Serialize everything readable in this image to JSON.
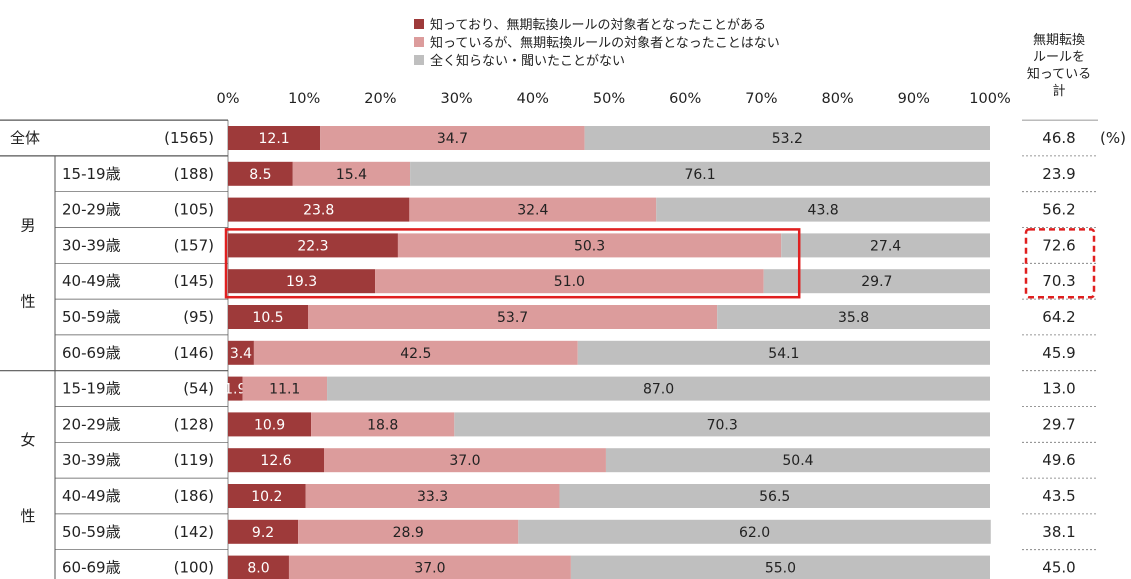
{
  "chart_data": {
    "type": "bar",
    "orientation": "horizontal",
    "stacked": true,
    "xlim": [
      0,
      100
    ],
    "xticks": [
      "0%",
      "10%",
      "20%",
      "30%",
      "40%",
      "50%",
      "60%",
      "70%",
      "80%",
      "90%",
      "100%"
    ],
    "legend": [
      {
        "name": "知っており、無期転換ルールの対象者となったことがある",
        "color": "#9e3a3a"
      },
      {
        "name": "知っているが、無期転換ルールの対象者となったことはない",
        "color": "#dc9c9c"
      },
      {
        "name": "全く知らない・聞いたことがない",
        "color": "#bfbfbf"
      }
    ],
    "right_header": [
      "無期転換",
      "ルールを",
      "知っている",
      "計"
    ],
    "unit": "(%)",
    "groups": [
      {
        "label": "全体",
        "chars": []
      },
      {
        "label": "男性",
        "chars": [
          "男",
          "性"
        ]
      },
      {
        "label": "女性",
        "chars": [
          "女",
          "性"
        ]
      }
    ],
    "rows": [
      {
        "group": 0,
        "label": "全体",
        "n": "(1565)",
        "values": [
          12.1,
          34.7,
          53.2
        ],
        "labels": [
          "12.1",
          "34.7",
          "53.2"
        ],
        "total": "46.8"
      },
      {
        "group": 1,
        "label": "15-19歳",
        "n": "(188)",
        "values": [
          8.5,
          15.4,
          76.1
        ],
        "labels": [
          "8.5",
          "15.4",
          "76.1"
        ],
        "total": "23.9"
      },
      {
        "group": 1,
        "label": "20-29歳",
        "n": "(105)",
        "values": [
          23.8,
          32.4,
          43.8
        ],
        "labels": [
          "23.8",
          "32.4",
          "43.8"
        ],
        "total": "56.2"
      },
      {
        "group": 1,
        "label": "30-39歳",
        "n": "(157)",
        "values": [
          22.3,
          50.3,
          27.4
        ],
        "labels": [
          "22.3",
          "50.3",
          "27.4"
        ],
        "total": "72.6",
        "highlight": true
      },
      {
        "group": 1,
        "label": "40-49歳",
        "n": "(145)",
        "values": [
          19.3,
          51.0,
          29.7
        ],
        "labels": [
          "19.3",
          "51.0",
          "29.7"
        ],
        "total": "70.3",
        "highlight": true
      },
      {
        "group": 1,
        "label": "50-59歳",
        "n": "(95)",
        "values": [
          10.5,
          53.7,
          35.8
        ],
        "labels": [
          "10.5",
          "53.7",
          "35.8"
        ],
        "total": "64.2"
      },
      {
        "group": 1,
        "label": "60-69歳",
        "n": "(146)",
        "values": [
          3.4,
          42.5,
          54.1
        ],
        "labels": [
          "3.4",
          "42.5",
          "54.1"
        ],
        "total": "45.9"
      },
      {
        "group": 2,
        "label": "15-19歳",
        "n": "(54)",
        "values": [
          1.9,
          11.1,
          87.0
        ],
        "labels": [
          "1.9",
          "11.1",
          "87.0"
        ],
        "total": "13.0"
      },
      {
        "group": 2,
        "label": "20-29歳",
        "n": "(128)",
        "values": [
          10.9,
          18.8,
          70.3
        ],
        "labels": [
          "10.9",
          "18.8",
          "70.3"
        ],
        "total": "29.7"
      },
      {
        "group": 2,
        "label": "30-39歳",
        "n": "(119)",
        "values": [
          12.6,
          37.0,
          50.4
        ],
        "labels": [
          "12.6",
          "37.0",
          "50.4"
        ],
        "total": "49.6"
      },
      {
        "group": 2,
        "label": "40-49歳",
        "n": "(186)",
        "values": [
          10.2,
          33.3,
          56.5
        ],
        "labels": [
          "10.2",
          "33.3",
          "56.5"
        ],
        "total": "43.5"
      },
      {
        "group": 2,
        "label": "50-59歳",
        "n": "(142)",
        "values": [
          9.2,
          28.9,
          62.0
        ],
        "labels": [
          "9.2",
          "28.9",
          "62.0"
        ],
        "total": "38.1"
      },
      {
        "group": 2,
        "label": "60-69歳",
        "n": "(100)",
        "values": [
          8.0,
          37.0,
          55.0
        ],
        "labels": [
          "8.0",
          "37.0",
          "55.0"
        ],
        "total": "45.0"
      }
    ]
  }
}
